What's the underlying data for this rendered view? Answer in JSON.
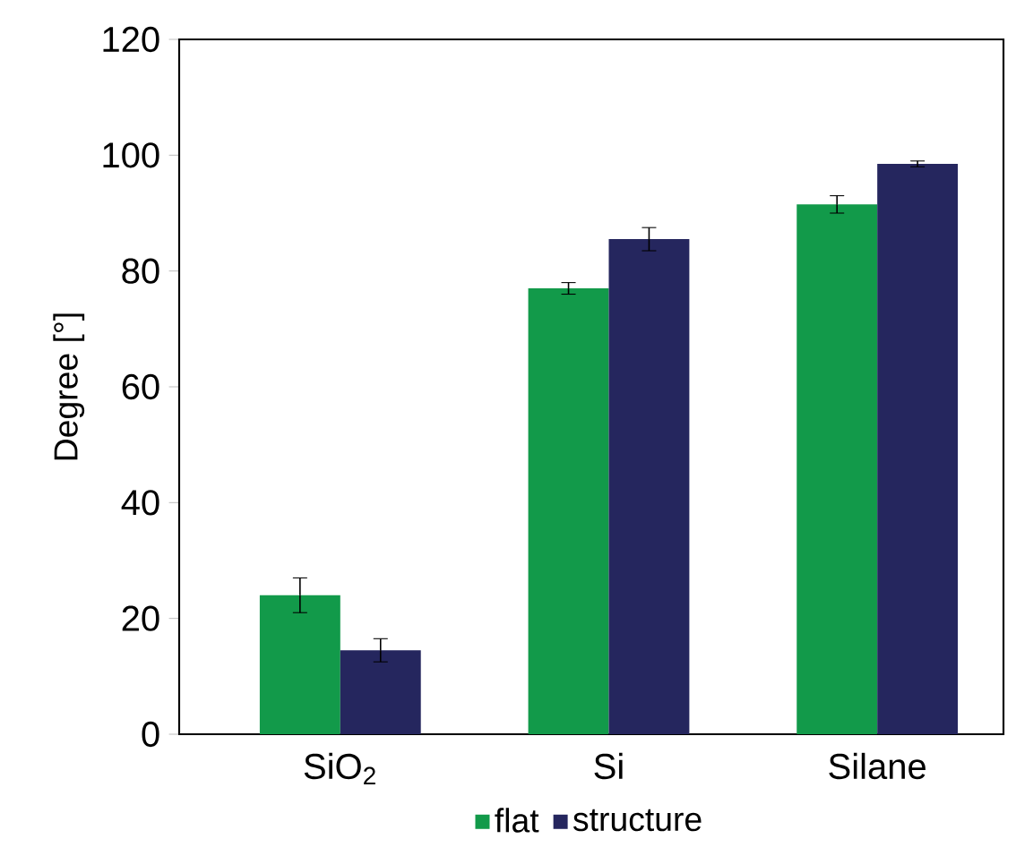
{
  "chart_data": {
    "type": "bar",
    "ylabel": "Degree [°]",
    "categories": [
      "SiO$_{2}$",
      "Si",
      "Silane"
    ],
    "series": [
      {
        "name": "flat",
        "color": "#129a4a",
        "values": [
          24,
          77,
          91.5
        ],
        "errors": [
          3,
          1,
          1.5
        ]
      },
      {
        "name": "structure",
        "color": "#25265e",
        "values": [
          14.5,
          85.5,
          98.5
        ],
        "errors": [
          2,
          2,
          0.5
        ]
      }
    ],
    "ylim": [
      0,
      120
    ],
    "yticks": [
      0,
      20,
      40,
      60,
      80,
      100,
      120
    ],
    "grid": false,
    "legend": "bottom"
  }
}
